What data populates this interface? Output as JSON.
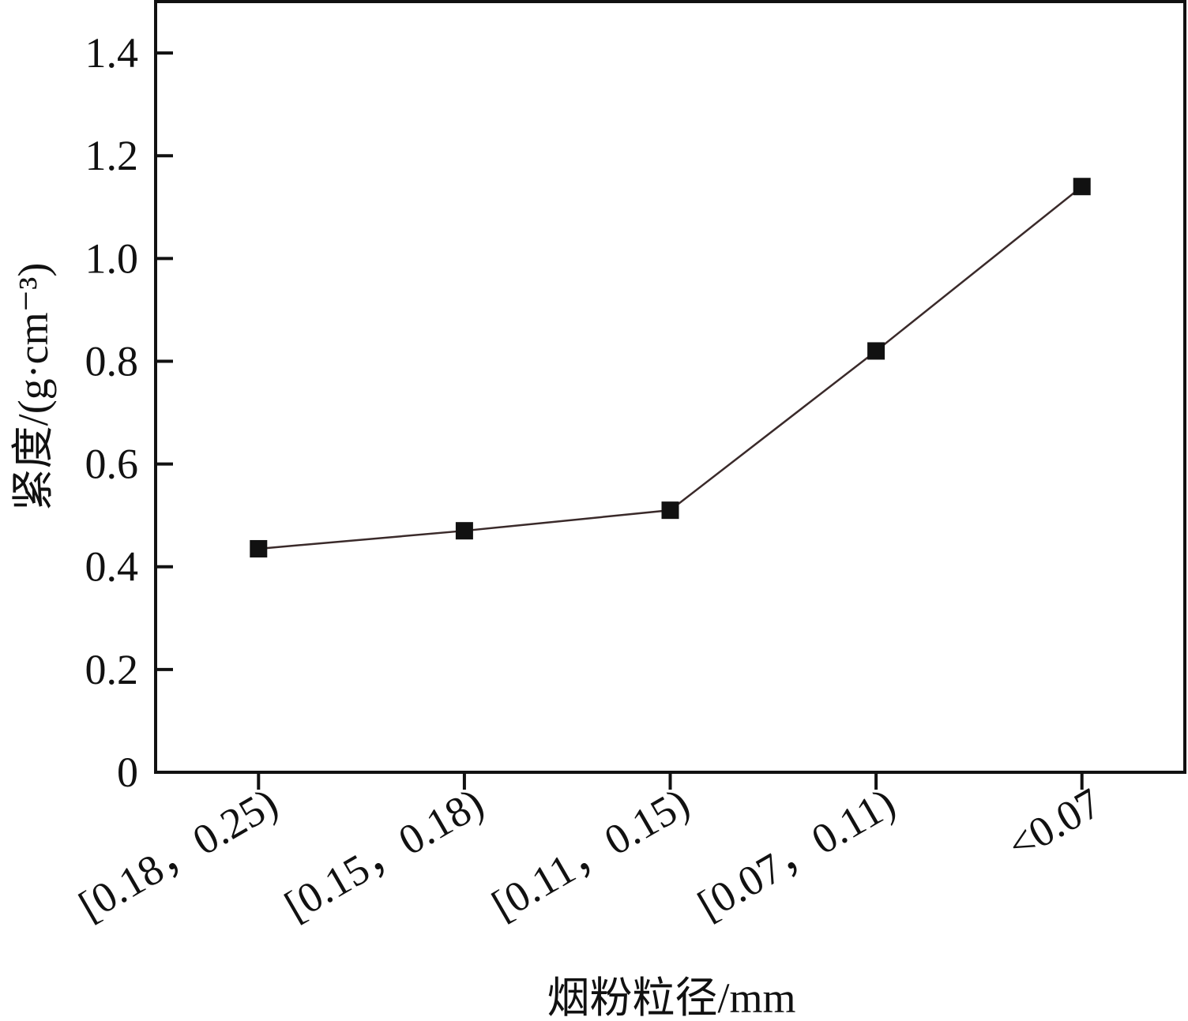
{
  "chart_data": {
    "type": "line",
    "x_label": "烟粉粒径/mm",
    "y_label": "紧度/(g·cm⁻³)",
    "categories": [
      "[0.18，0.25)",
      "[0.15，0.18)",
      "[0.11，0.15)",
      "[0.07，0.11)",
      "<0.07"
    ],
    "values": [
      0.435,
      0.47,
      0.51,
      0.82,
      1.14
    ],
    "color": "#3a2a2a",
    "marker_color": "#111111",
    "ylim": [
      0,
      1.5
    ],
    "yticks": [
      0,
      0.2,
      0.4,
      0.6,
      0.8,
      {
        "value": 1,
        "label": "1.0"
      },
      1.2,
      1.4
    ]
  }
}
